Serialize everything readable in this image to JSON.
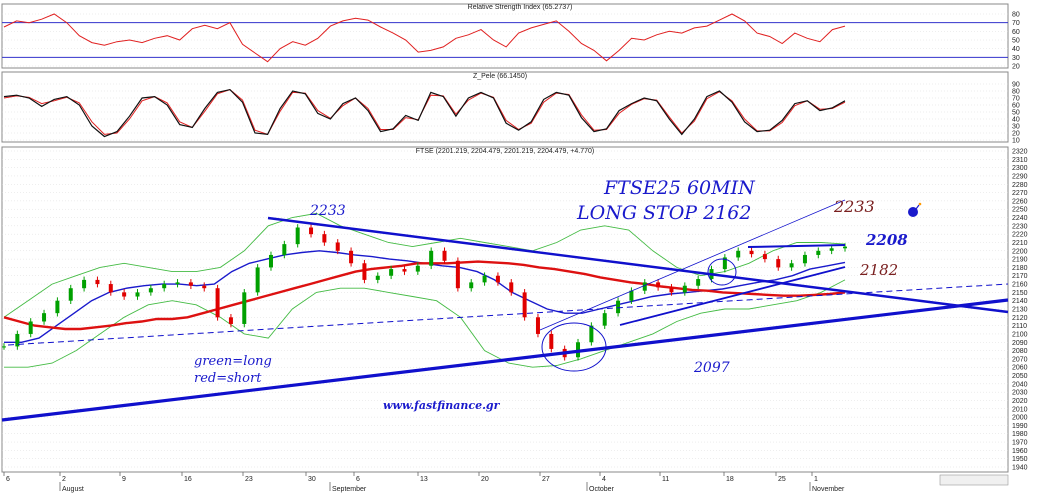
{
  "colors": {
    "background": "#ffffff",
    "grid": "#dcdcdc",
    "rsi": "#e02020",
    "pele_fast": "#111111",
    "pele_slow": "#e02020",
    "up_candle": "#00a000",
    "down_candle": "#e00000",
    "ma_long": "#dd1111",
    "ma_short": "#1a1acc",
    "bollinger": "#44bb44",
    "trendline": "#1010cc",
    "annotation_blue": "#1a1acc",
    "annotation_brown": "#7a2020"
  },
  "chart_data": [
    {
      "type": "line",
      "title": "Relative Strength Index (65.2737)",
      "ylim": [
        20,
        80
      ],
      "yticks": [
        "80",
        "70",
        "60",
        "50",
        "40",
        "30",
        "20"
      ],
      "reference_lines": [
        70,
        30
      ],
      "series": [
        {
          "values": [
            65,
            72,
            70,
            74,
            80,
            70,
            55,
            47,
            44,
            48,
            50,
            47,
            52,
            55,
            50,
            63,
            67,
            63,
            70,
            45,
            35,
            25,
            40,
            48,
            44,
            52,
            66,
            72,
            75,
            73,
            65,
            58,
            50,
            36,
            38,
            42,
            52,
            56,
            62,
            50,
            42,
            58,
            64,
            68,
            72,
            60,
            46,
            38,
            26,
            38,
            52,
            50,
            56,
            60,
            58,
            64,
            66,
            73,
            80,
            72,
            58,
            54,
            46,
            58,
            52,
            48,
            62,
            66
          ]
        }
      ]
    },
    {
      "type": "line",
      "title": "Z_Pele (66.1450)",
      "ylim": [
        10,
        90
      ],
      "yticks": [
        "90",
        "80",
        "70",
        "60",
        "50",
        "40",
        "30",
        "20",
        "10"
      ],
      "series": [
        {
          "values": [
            72,
            74,
            70,
            58,
            68,
            72,
            60,
            30,
            15,
            22,
            44,
            70,
            72,
            60,
            32,
            28,
            55,
            78,
            82,
            64,
            20,
            18,
            55,
            80,
            76,
            48,
            40,
            62,
            70,
            52,
            22,
            26,
            45,
            38,
            78,
            72,
            44,
            70,
            78,
            70,
            34,
            24,
            36,
            68,
            78,
            74,
            42,
            22,
            26,
            52,
            62,
            70,
            66,
            40,
            18,
            40,
            72,
            80,
            64,
            36,
            22,
            24,
            38,
            62,
            66,
            52,
            56,
            66
          ]
        },
        {
          "values": [
            70,
            73,
            71,
            62,
            66,
            71,
            63,
            36,
            18,
            20,
            40,
            66,
            72,
            63,
            36,
            28,
            51,
            76,
            82,
            67,
            24,
            18,
            51,
            78,
            77,
            52,
            41,
            59,
            70,
            55,
            25,
            25,
            42,
            39,
            74,
            73,
            47,
            67,
            77,
            71,
            38,
            25,
            34,
            64,
            77,
            75,
            46,
            24,
            25,
            48,
            61,
            69,
            67,
            43,
            20,
            37,
            69,
            79,
            66,
            40,
            23,
            23,
            35,
            59,
            66,
            54,
            55,
            64
          ]
        }
      ]
    },
    {
      "type": "candlestick",
      "title": "FTSE (2201.219, 2204.479, 2201.219, 2204.479, +4.770)",
      "ylim": [
        1940,
        2320
      ],
      "yticks": [
        "2320",
        "2310",
        "2300",
        "2290",
        "2280",
        "2270",
        "2260",
        "2250",
        "2240",
        "2230",
        "2220",
        "2210",
        "2200",
        "2190",
        "2180",
        "2170",
        "2160",
        "2150",
        "2140",
        "2130",
        "2120",
        "2110",
        "2100",
        "2090",
        "2080",
        "2070",
        "2060",
        "2050",
        "2040",
        "2030",
        "2020",
        "2010",
        "2000",
        "1990",
        "1980",
        "1970",
        "1960",
        "1950",
        "1940"
      ],
      "xticks": [
        "6",
        "2",
        "9",
        "16",
        "23",
        "30",
        "6",
        "13",
        "20",
        "27",
        "4",
        "11",
        "18",
        "25",
        "1"
      ],
      "months": [
        "August",
        "September",
        "October",
        "November"
      ],
      "closes": [
        2085,
        2100,
        2115,
        2125,
        2140,
        2155,
        2165,
        2160,
        2150,
        2145,
        2150,
        2155,
        2160,
        2162,
        2158,
        2155,
        2120,
        2112,
        2150,
        2180,
        2195,
        2208,
        2228,
        2220,
        2210,
        2200,
        2185,
        2165,
        2170,
        2178,
        2175,
        2182,
        2200,
        2188,
        2155,
        2162,
        2170,
        2162,
        2150,
        2120,
        2100,
        2082,
        2072,
        2090,
        2110,
        2125,
        2140,
        2152,
        2162,
        2156,
        2150,
        2158,
        2166,
        2178,
        2192,
        2200,
        2196,
        2190,
        2180,
        2185,
        2195,
        2200,
        2203,
        2205
      ],
      "ma_long": [
        2120,
        2115,
        2110,
        2108,
        2106,
        2106,
        2108,
        2110,
        2113,
        2115,
        2118,
        2118,
        2120,
        2125,
        2130,
        2135,
        2140,
        2145,
        2150,
        2155,
        2160,
        2165,
        2170,
        2175,
        2178,
        2180,
        2182,
        2185,
        2185,
        2185,
        2186,
        2187,
        2186,
        2185,
        2183,
        2180,
        2178,
        2175,
        2172,
        2168,
        2165,
        2162,
        2160,
        2157,
        2155,
        2153,
        2152,
        2150,
        2149,
        2148,
        2147,
        2146,
        2146,
        2147,
        2148,
        2150
      ],
      "ma_short": [
        2090,
        2090,
        2095,
        2110,
        2125,
        2140,
        2150,
        2155,
        2158,
        2160,
        2160,
        2158,
        2160,
        2175,
        2185,
        2190,
        2195,
        2198,
        2200,
        2198,
        2195,
        2193,
        2190,
        2188,
        2185,
        2182,
        2180,
        2175,
        2165,
        2150,
        2140,
        2130,
        2125,
        2125,
        2130,
        2135,
        2140,
        2145,
        2148,
        2150,
        2152,
        2154,
        2158,
        2162,
        2165,
        2170,
        2178,
        2182,
        2186
      ],
      "bb_upper": [
        2120,
        2140,
        2160,
        2170,
        2180,
        2185,
        2180,
        2175,
        2175,
        2180,
        2200,
        2230,
        2240,
        2245,
        2230,
        2220,
        2210,
        2205,
        2210,
        2215,
        2210,
        2205,
        2200,
        2210,
        2225,
        2230,
        2225,
        2200,
        2180,
        2170,
        2175,
        2185,
        2200,
        2210,
        2210,
        2208
      ],
      "bb_lower": [
        2060,
        2060,
        2065,
        2080,
        2100,
        2120,
        2135,
        2140,
        2135,
        2120,
        2100,
        2095,
        2130,
        2150,
        2155,
        2155,
        2150,
        2145,
        2140,
        2120,
        2080,
        2065,
        2060,
        2062,
        2070,
        2080,
        2090,
        2100,
        2115,
        2125,
        2130,
        2130,
        2135,
        2140,
        2150,
        2165
      ]
    }
  ],
  "annotations": {
    "title_line1": "FTSE25 60MIN",
    "title_line2": "LONG STOP 2162",
    "label_2233_left": "2233",
    "label_2233_right": "2233",
    "label_2208": "2208",
    "label_2182": "2182",
    "label_2097": "2097",
    "legend_green": "green=long",
    "legend_red": "red=short",
    "website": "www.fastfinance.gr"
  },
  "icons": {
    "bomb": "bomb-icon"
  }
}
